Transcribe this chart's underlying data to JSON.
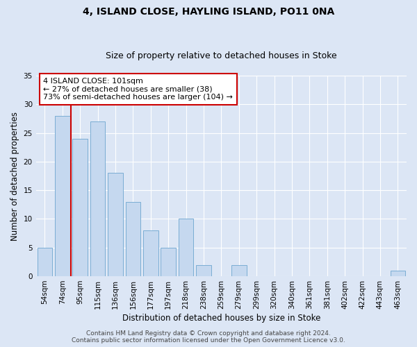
{
  "title1": "4, ISLAND CLOSE, HAYLING ISLAND, PO11 0NA",
  "title2": "Size of property relative to detached houses in Stoke",
  "xlabel": "Distribution of detached houses by size in Stoke",
  "ylabel": "Number of detached properties",
  "categories": [
    "54sqm",
    "74sqm",
    "95sqm",
    "115sqm",
    "136sqm",
    "156sqm",
    "177sqm",
    "197sqm",
    "218sqm",
    "238sqm",
    "259sqm",
    "279sqm",
    "299sqm",
    "320sqm",
    "340sqm",
    "361sqm",
    "381sqm",
    "402sqm",
    "422sqm",
    "443sqm",
    "463sqm"
  ],
  "values": [
    5,
    28,
    24,
    27,
    18,
    13,
    8,
    5,
    10,
    2,
    0,
    2,
    0,
    0,
    0,
    0,
    0,
    0,
    0,
    0,
    1
  ],
  "bar_color": "#c5d8ef",
  "bar_edge_color": "#7aadd4",
  "vline_color": "#cc0000",
  "ylim": [
    0,
    35
  ],
  "yticks": [
    0,
    5,
    10,
    15,
    20,
    25,
    30,
    35
  ],
  "annotation_text": "4 ISLAND CLOSE: 101sqm\n← 27% of detached houses are smaller (38)\n73% of semi-detached houses are larger (104) →",
  "annotation_box_color": "#ffffff",
  "annotation_border_color": "#cc0000",
  "bg_color": "#dce6f5",
  "plot_bg_color": "#dce6f5",
  "footer_text": "Contains HM Land Registry data © Crown copyright and database right 2024.\nContains public sector information licensed under the Open Government Licence v3.0.",
  "title_fontsize": 10,
  "subtitle_fontsize": 9,
  "axis_label_fontsize": 8.5,
  "tick_fontsize": 7.5,
  "footer_fontsize": 6.5
}
